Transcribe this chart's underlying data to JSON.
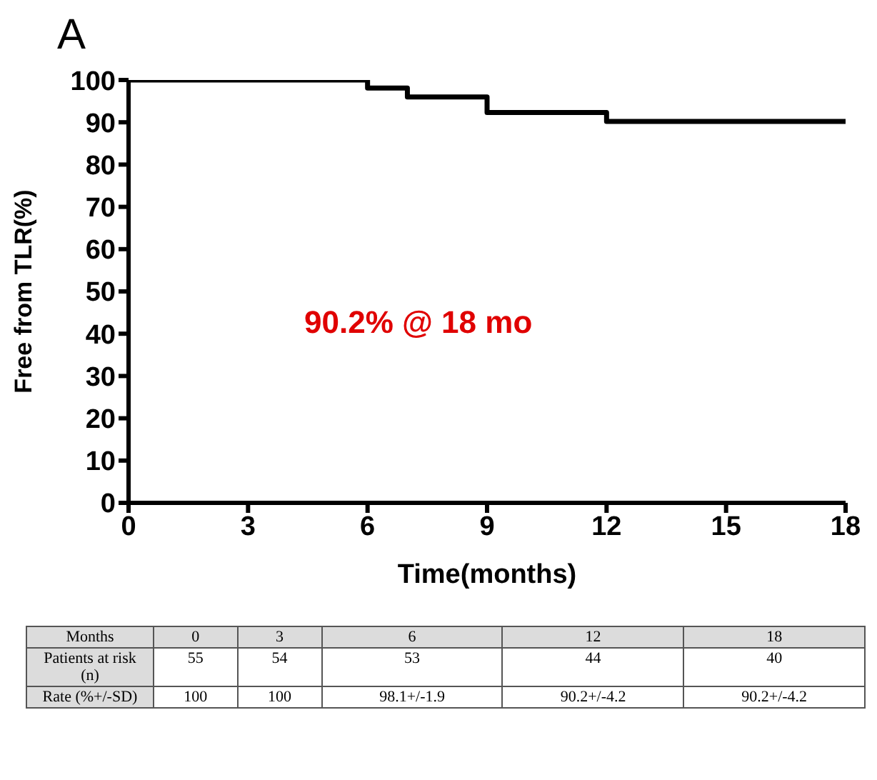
{
  "chart_data": {
    "type": "step",
    "title": "A",
    "xlabel": "Time(months)",
    "ylabel": "Free from TLR(%)",
    "x": [
      0,
      6,
      7,
      9,
      12,
      18
    ],
    "series": [
      {
        "color": "#000000",
        "values": [
          100,
          98.1,
          96,
          92.3,
          90.2,
          90.2
        ]
      }
    ],
    "xlim": [
      0,
      18
    ],
    "xticks": [
      0,
      3,
      6,
      9,
      12,
      15,
      18
    ],
    "ylim": [
      0,
      100
    ],
    "yticks": [
      0,
      10,
      20,
      30,
      40,
      50,
      60,
      70,
      80,
      90,
      100
    ],
    "grid": false,
    "legend": false,
    "marker": "none",
    "line_style": "solid",
    "annotations": [
      "90.2% @ 18 mo",
      "Months",
      "0",
      "3",
      "6",
      "12",
      "18",
      "Patients at risk (n)",
      "55",
      "54",
      "53",
      "44",
      "40",
      "Rate (%+/-SD)",
      "100",
      "100",
      "98.1+/-1.9",
      "90.2+/-4.2",
      "90.2+/-4.2"
    ]
  }
}
